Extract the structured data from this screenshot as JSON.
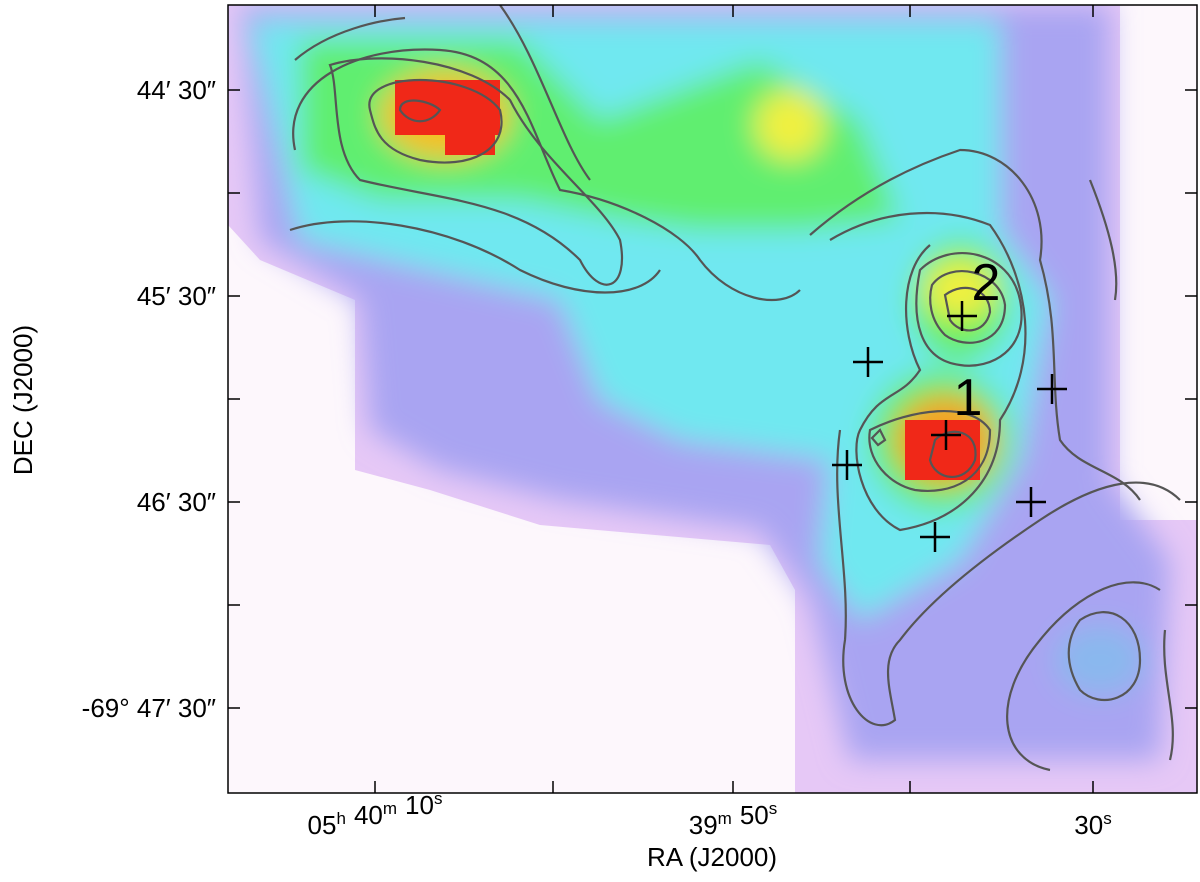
{
  "figure": {
    "y_axis": {
      "label": "DEC (J2000)",
      "ticks": [
        "44′ 30″",
        "45′ 30″",
        "46′ 30″",
        "-69° 47′ 30″"
      ]
    },
    "x_axis": {
      "label": "RA (J2000)",
      "ticks": [
        [
          {
            "text": "05",
            "sup": "h"
          },
          {
            "text": "40",
            "sup": "m"
          },
          {
            "text": "10",
            "sup": "s"
          }
        ],
        [
          {
            "text": "39",
            "sup": "m"
          },
          {
            "text": "50",
            "sup": "s"
          }
        ],
        [
          {
            "text": "30",
            "sup": "s"
          }
        ]
      ]
    },
    "sources": [
      "1",
      "2"
    ]
  }
}
